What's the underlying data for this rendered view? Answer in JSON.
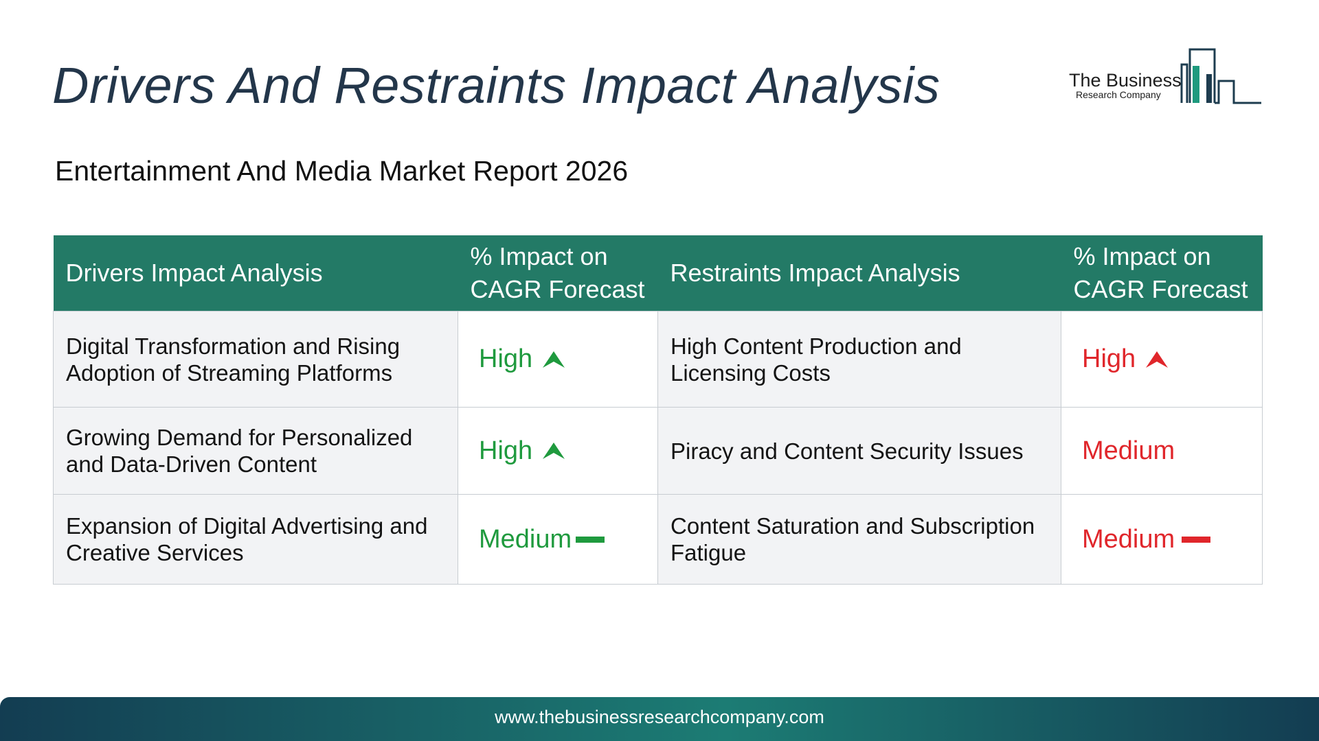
{
  "title": "Drivers And Restraints Impact Analysis",
  "subtitle": "Entertainment And Media Market Report 2026",
  "logo": {
    "line1": "The Business",
    "line2": "Research Company"
  },
  "table": {
    "headers": {
      "drivers": "Drivers Impact Analysis",
      "drivers_impact": "% Impact on CAGR Forecast",
      "restraints": "Restraints Impact Analysis",
      "restraints_impact": "% Impact on CAGR Forecast"
    },
    "rows": [
      {
        "driver": "Digital Transformation and Rising Adoption of Streaming Platforms",
        "driver_impact": "High",
        "driver_icon": "arrow-up-icon",
        "restraint": "High Content Production and Licensing Costs",
        "restraint_impact": "High",
        "restraint_icon": "arrow-up-icon"
      },
      {
        "driver": "Growing Demand for Personalized and Data-Driven Content",
        "driver_impact": "High",
        "driver_icon": "arrow-up-icon",
        "restraint": "Piracy and Content Security Issues",
        "restraint_impact": "Medium",
        "restraint_icon": ""
      },
      {
        "driver": "Expansion of Digital Advertising and Creative Services",
        "driver_impact": "Medium",
        "driver_icon": "dash-icon",
        "restraint": "Content Saturation and Subscription Fatigue",
        "restraint_impact": "Medium",
        "restraint_icon": "dash-icon"
      }
    ]
  },
  "colors": {
    "header_bg": "#237a66",
    "driver_impact": "#1f9a3e",
    "restraint_impact": "#e0262b",
    "title": "#23364a"
  },
  "footer": {
    "url": "www.thebusinessresearchcompany.com"
  }
}
